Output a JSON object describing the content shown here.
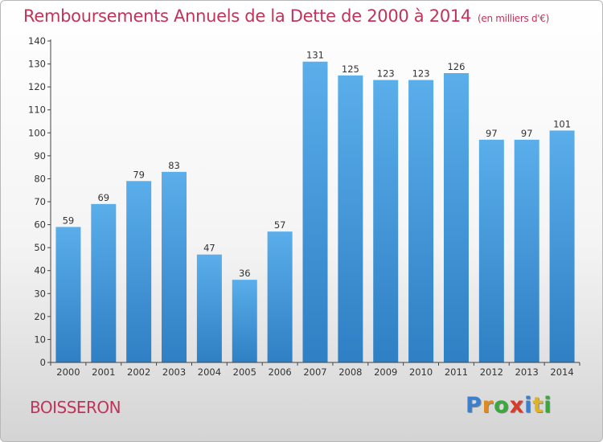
{
  "chart_data": {
    "type": "bar",
    "title": "Remboursements Annuels de la Dette de 2000 à 2014",
    "unit_note": "(en milliers d'€)",
    "categories": [
      "2000",
      "2001",
      "2002",
      "2003",
      "2004",
      "2005",
      "2006",
      "2007",
      "2008",
      "2009",
      "2010",
      "2011",
      "2012",
      "2013",
      "2014"
    ],
    "values": [
      59,
      69,
      79,
      83,
      47,
      36,
      57,
      131,
      125,
      123,
      123,
      126,
      97,
      97,
      101
    ],
    "ylim": [
      0,
      140
    ],
    "yticks": [
      0,
      10,
      20,
      30,
      40,
      50,
      60,
      70,
      80,
      90,
      100,
      110,
      120,
      130,
      140
    ],
    "grid": false,
    "bar_color": "#4a9be0"
  },
  "place": "BOISSERON",
  "logo": {
    "letters": [
      "P",
      "r",
      "o",
      "x",
      "i",
      "t",
      "i"
    ],
    "colors": [
      "#3a7fd0",
      "#e08a1e",
      "#3aa83a",
      "#d93a2a",
      "#3a7fd0",
      "#e0b41e",
      "#3aa83a"
    ]
  }
}
